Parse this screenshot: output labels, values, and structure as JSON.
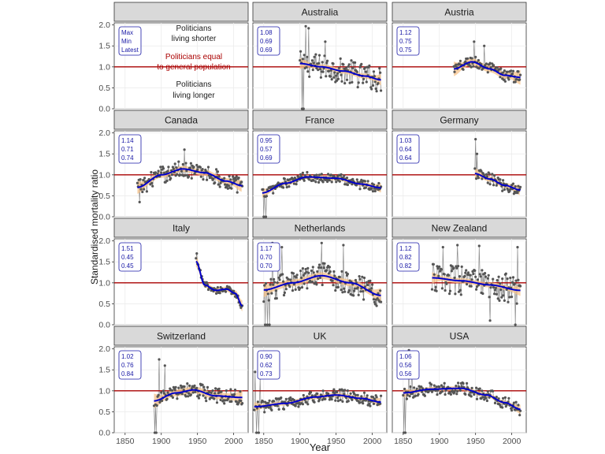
{
  "chart_data": {
    "type": "line",
    "ylabel": "Standardised mortality ratio",
    "xlabel": "Year",
    "xlim": [
      1835,
      2020
    ],
    "ylim": [
      0,
      2.05
    ],
    "x_ticks": [
      1850,
      1900,
      1950,
      2000
    ],
    "x_tick_labels": [
      "1850",
      "1900",
      "1950",
      "2000"
    ],
    "y_ticks": [
      0,
      0.5,
      1,
      1.5,
      2
    ],
    "y_tick_labels": [
      "0.0",
      "0.5",
      "1.0",
      "1.5",
      "2.0"
    ],
    "reference_line": 1.0,
    "colors": {
      "points": "#555555",
      "trend": "#0000cc",
      "ci_band": "#f5c28a",
      "reference": "#aa0000",
      "strip": "#d9d9d9",
      "grid": "#ebebeb",
      "stats": "#1a1aa6"
    },
    "legend_panel": {
      "box_labels": [
        "Max",
        "Min",
        "Latest"
      ],
      "upper_text": [
        "Politicians",
        "living shorter"
      ],
      "middle_text": [
        "Politicians equal",
        "to general population"
      ],
      "lower_text": [
        "Politicians",
        "living longer"
      ]
    },
    "panels": [
      {
        "country": "Australia",
        "start": 1900,
        "end": 2012,
        "stats": [
          "1.08",
          "0.69",
          "0.69"
        ],
        "trend": [
          [
            1900,
            1.08
          ],
          [
            1930,
            1.0
          ],
          [
            1960,
            0.9
          ],
          [
            1990,
            0.78
          ],
          [
            2012,
            0.69
          ]
        ],
        "band": 0.06,
        "noise_level": 0.3,
        "spikes": [
          [
            1903,
            0.0
          ],
          [
            1905,
            0.0
          ],
          [
            1908,
            1.97
          ],
          [
            1912,
            1.92
          ],
          [
            1935,
            1.6
          ]
        ]
      },
      {
        "country": "Austria",
        "start": 1920,
        "end": 2012,
        "stats": [
          "1.12",
          "0.75",
          "0.75"
        ],
        "trend": [
          [
            1920,
            0.95
          ],
          [
            1945,
            1.12
          ],
          [
            1970,
            0.95
          ],
          [
            1990,
            0.8
          ],
          [
            2012,
            0.75
          ]
        ],
        "band": 0.08,
        "noise_level": 0.15,
        "spikes": [
          [
            1948,
            1.6
          ],
          [
            1962,
            1.5
          ]
        ]
      },
      {
        "country": "Canada",
        "start": 1867,
        "end": 2012,
        "stats": [
          "1.14",
          "0.71",
          "0.74"
        ],
        "trend": [
          [
            1867,
            0.7
          ],
          [
            1900,
            1.0
          ],
          [
            1930,
            1.14
          ],
          [
            1960,
            1.05
          ],
          [
            1990,
            0.85
          ],
          [
            2012,
            0.74
          ]
        ],
        "band": 0.07,
        "noise_level": 0.2,
        "spikes": [
          [
            1870,
            0.35
          ],
          [
            1932,
            1.6
          ]
        ]
      },
      {
        "country": "France",
        "start": 1848,
        "end": 2012,
        "stats": [
          "0.95",
          "0.57",
          "0.69"
        ],
        "trend": [
          [
            1848,
            0.57
          ],
          [
            1880,
            0.8
          ],
          [
            1910,
            0.95
          ],
          [
            1950,
            0.92
          ],
          [
            1985,
            0.78
          ],
          [
            2012,
            0.69
          ]
        ],
        "band": 0.05,
        "noise_level": 0.12,
        "spikes": [
          [
            1850,
            0.0
          ],
          [
            1853,
            0.0
          ]
        ]
      },
      {
        "country": "Germany",
        "start": 1949,
        "end": 2012,
        "stats": [
          "1.03",
          "0.64",
          "0.64"
        ],
        "trend": [
          [
            1949,
            1.03
          ],
          [
            1970,
            0.9
          ],
          [
            1990,
            0.75
          ],
          [
            2012,
            0.64
          ]
        ],
        "band": 0.06,
        "noise_level": 0.15,
        "spikes": [
          [
            1950,
            1.85
          ],
          [
            1952,
            1.5
          ]
        ]
      },
      {
        "country": "Italy",
        "start": 1948,
        "end": 2012,
        "stats": [
          "1.51",
          "0.45",
          "0.45"
        ],
        "trend": [
          [
            1948,
            1.51
          ],
          [
            1960,
            0.95
          ],
          [
            1975,
            0.82
          ],
          [
            1990,
            0.85
          ],
          [
            2002,
            0.75
          ],
          [
            2012,
            0.45
          ]
        ],
        "band": 0.06,
        "noise_level": 0.08,
        "spikes": [
          [
            1949,
            1.7
          ]
        ]
      },
      {
        "country": "Netherlands",
        "start": 1850,
        "end": 2012,
        "stats": [
          "1.17",
          "0.70",
          "0.70"
        ],
        "trend": [
          [
            1850,
            0.83
          ],
          [
            1890,
            1.0
          ],
          [
            1930,
            1.17
          ],
          [
            1970,
            1.0
          ],
          [
            2012,
            0.7
          ]
        ],
        "band": 0.08,
        "noise_level": 0.3,
        "spikes": [
          [
            1852,
            0.0
          ],
          [
            1855,
            0.0
          ],
          [
            1858,
            0.0
          ],
          [
            1862,
            1.95
          ],
          [
            1870,
            1.9
          ],
          [
            1875,
            1.85
          ],
          [
            1930,
            1.95
          ],
          [
            1960,
            1.9
          ]
        ]
      },
      {
        "country": "New Zealand",
        "start": 1890,
        "end": 2012,
        "stats": [
          "1.12",
          "0.82",
          "0.82"
        ],
        "trend": [
          [
            1890,
            1.12
          ],
          [
            1930,
            1.05
          ],
          [
            1970,
            0.95
          ],
          [
            2012,
            0.82
          ]
        ],
        "band": 0.06,
        "noise_level": 0.35,
        "spikes": [
          [
            1905,
            1.85
          ],
          [
            1925,
            1.9
          ],
          [
            1955,
            1.88
          ],
          [
            1970,
            0.1
          ],
          [
            2005,
            0.0
          ],
          [
            2008,
            1.85
          ]
        ]
      },
      {
        "country": "Switzerland",
        "start": 1890,
        "end": 2012,
        "stats": [
          "1.02",
          "0.76",
          "0.84"
        ],
        "trend": [
          [
            1890,
            0.76
          ],
          [
            1920,
            0.95
          ],
          [
            1945,
            1.02
          ],
          [
            1975,
            0.88
          ],
          [
            2012,
            0.84
          ]
        ],
        "band": 0.08,
        "noise_level": 0.18,
        "spikes": [
          [
            1891,
            0.0
          ],
          [
            1893,
            0.0
          ],
          [
            1897,
            1.75
          ],
          [
            1905,
            1.6
          ]
        ]
      },
      {
        "country": "UK",
        "start": 1837,
        "end": 2012,
        "stats": [
          "0.90",
          "0.62",
          "0.73"
        ],
        "trend": [
          [
            1837,
            0.62
          ],
          [
            1880,
            0.7
          ],
          [
            1920,
            0.85
          ],
          [
            1950,
            0.9
          ],
          [
            1985,
            0.82
          ],
          [
            2012,
            0.73
          ]
        ],
        "band": 0.05,
        "noise_level": 0.15,
        "spikes": [
          [
            1838,
            1.45
          ],
          [
            1840,
            0.0
          ],
          [
            1843,
            0.0
          ],
          [
            1845,
            1.3
          ]
        ]
      },
      {
        "country": "USA",
        "start": 1850,
        "end": 2012,
        "stats": [
          "1.06",
          "0.56",
          "0.56"
        ],
        "trend": [
          [
            1850,
            0.95
          ],
          [
            1890,
            1.04
          ],
          [
            1930,
            1.06
          ],
          [
            1965,
            0.9
          ],
          [
            1990,
            0.72
          ],
          [
            2012,
            0.56
          ]
        ],
        "band": 0.05,
        "noise_level": 0.15,
        "spikes": [
          [
            1851,
            0.0
          ],
          [
            1853,
            0.0
          ],
          [
            1858,
            1.97
          ],
          [
            1862,
            1.6
          ]
        ]
      }
    ]
  }
}
